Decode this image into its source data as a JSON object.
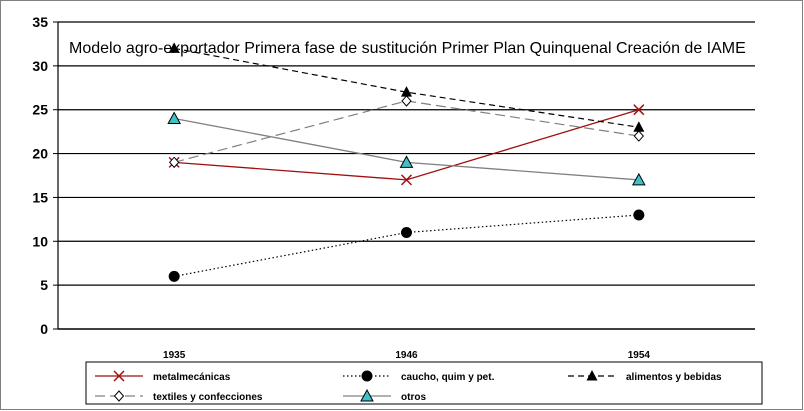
{
  "chart_data": {
    "type": "line",
    "categories": [
      "1935",
      "1946",
      "1954"
    ],
    "title": "",
    "xlabel": "",
    "ylabel": "",
    "ylim": [
      0,
      35
    ],
    "yticks": [
      0,
      5,
      10,
      15,
      20,
      25,
      30,
      35
    ],
    "grid": true,
    "legend_position": "bottom",
    "annotation": "Modelo agro-exportador Primera fase de sustitución Primer Plan Quinquenal Creación de IAME",
    "series": [
      {
        "name": "metalmecánicas",
        "values": [
          19,
          17,
          25
        ],
        "color": "#a01010",
        "dash": "solid",
        "marker": "x"
      },
      {
        "name": "caucho, quim y pet.",
        "values": [
          6,
          11,
          13
        ],
        "color": "#000000",
        "dash": "dotted",
        "marker": "circle"
      },
      {
        "name": "alimentos y bebidas",
        "values": [
          32,
          27,
          23
        ],
        "color": "#000000",
        "dash": "dashed",
        "marker": "triangle-black"
      },
      {
        "name": "textiles y confecciones",
        "values": [
          19,
          26,
          22
        ],
        "color": "#808080",
        "dash": "longdash",
        "marker": "diamond"
      },
      {
        "name": "otros",
        "values": [
          24,
          19,
          17
        ],
        "color": "#808080",
        "dash": "solid",
        "marker": "triangle-cyan"
      }
    ]
  }
}
